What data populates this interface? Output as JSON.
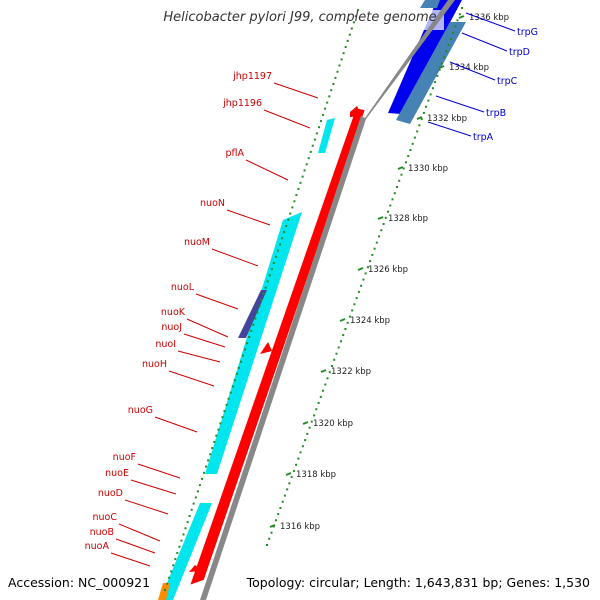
{
  "title": "Helicobacter pylori J99, complete genome",
  "accession": "Accession: NC_000921",
  "topology": "Topology: circular; Length: 1,643,831 bp; Genes: 1,530",
  "colors": {
    "forward_cds": "#ff0000",
    "reverse_cds": "#0000ff",
    "other_gene": "#00e5ee",
    "highlight": "#44449a",
    "rna": "#4682b4",
    "orange": "#ff8c00",
    "red_label": "#cc0000",
    "blue_label": "#0000cc",
    "tick": "#228b22",
    "backbone": "#888888"
  },
  "ticks": [
    "1336 kbp",
    "1334 kbp",
    "1332 kbp",
    "1330 kbp",
    "1328 kbp",
    "1326 kbp",
    "1324 kbp",
    "1322 kbp",
    "1320 kbp",
    "1318 kbp",
    "1316 kbp"
  ],
  "left_labels": [
    "jhp1197",
    "jhp1196",
    "pflA",
    "nuoN",
    "nuoM",
    "nuoL",
    "nuoK",
    "nuoJ",
    "nuoI",
    "nuoH",
    "nuoG",
    "nuoF",
    "nuoE",
    "nuoD",
    "nuoC",
    "nuoB",
    "nuoA"
  ],
  "right_labels": [
    "trpG",
    "trpD",
    "trpC",
    "trpB",
    "trpA"
  ]
}
